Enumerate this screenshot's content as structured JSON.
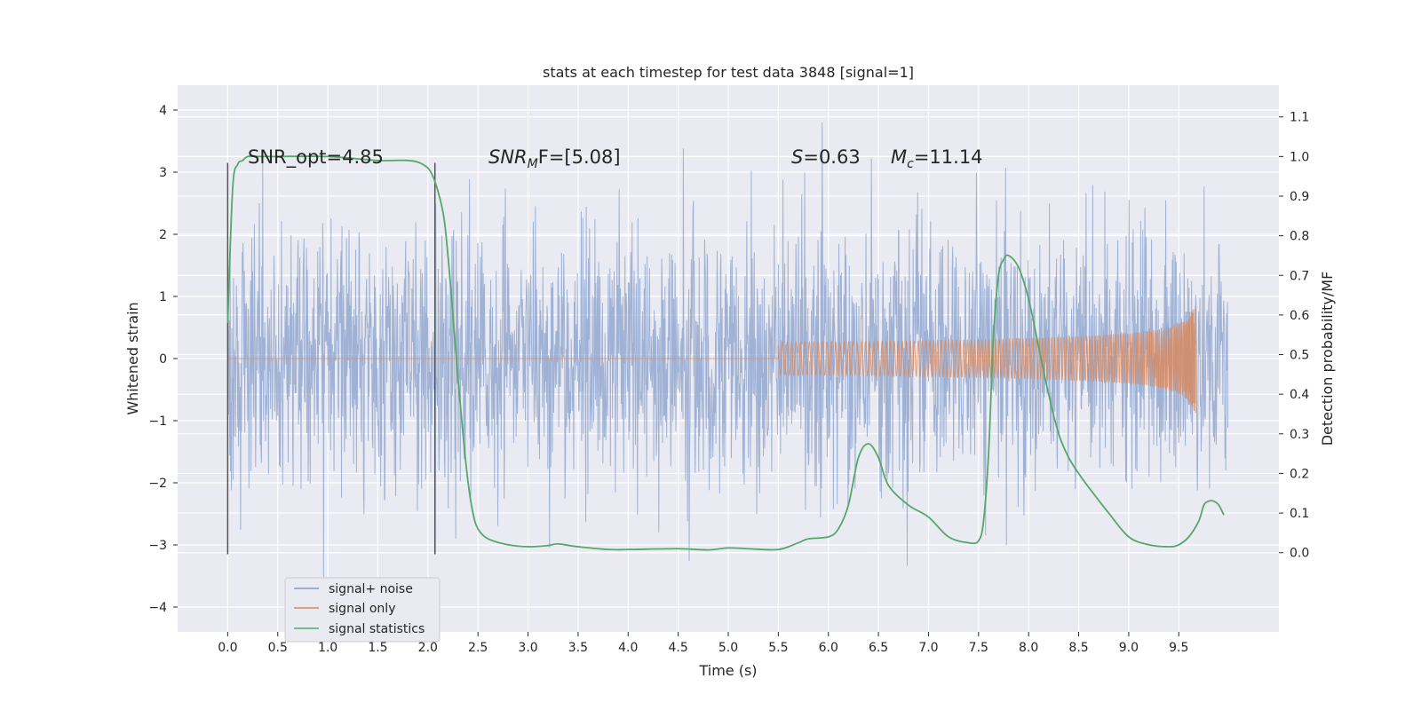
{
  "chart_data": {
    "type": "line",
    "title": "stats at each timestep for test data 3848 [signal=1]",
    "xlabel": "Time (s)",
    "ylabel": "Whitened strain",
    "y2label": "Detection probability/MF",
    "xlim": [
      -0.5,
      10.5
    ],
    "ylim": [
      -4.4,
      4.4
    ],
    "y2lim": [
      -0.2,
      1.18
    ],
    "x_ticks": [
      "0.0",
      "0.5",
      "1.0",
      "1.5",
      "2.0",
      "2.5",
      "3.0",
      "3.5",
      "4.0",
      "4.5",
      "5.0",
      "5.5",
      "6.0",
      "6.5",
      "7.0",
      "7.5",
      "8.0",
      "8.5",
      "9.0",
      "9.5"
    ],
    "y_ticks": [
      "4",
      "3",
      "2",
      "1",
      "0",
      "−1",
      "−2",
      "−3",
      "−4"
    ],
    "y_tick_values": [
      4,
      3,
      2,
      1,
      0,
      -1,
      -2,
      -3,
      -4
    ],
    "y2_ticks": [
      "1.1",
      "1.0",
      "0.9",
      "0.8",
      "0.7",
      "0.6",
      "0.5",
      "0.4",
      "0.3",
      "0.2",
      "0.1",
      "0.0"
    ],
    "y2_tick_values": [
      1.1,
      1.0,
      0.9,
      0.8,
      0.7,
      0.6,
      0.5,
      0.4,
      0.3,
      0.2,
      0.1,
      0.0
    ],
    "grid": true,
    "legend_position": "bottom-left",
    "annotations": {
      "snr_opt": "SNR_opt=4.85",
      "snr_mf_label": "SNR",
      "snr_mf_sub": "M",
      "snr_mf_suffix": "F=[5.08]",
      "s_label": "S",
      "s_value": "=0.63",
      "mc_label": "M",
      "mc_sub": "c",
      "mc_value": "=11.14"
    },
    "vertical_markers_x": [
      0.0,
      2.07
    ],
    "series": [
      {
        "name": "signal+ noise",
        "color": "#7f9ac9",
        "axis": "left",
        "x_range": [
          0.0,
          9.99
        ],
        "envelope": "noise with sigma ~1, peaks reaching about +3.8 and -4.1"
      },
      {
        "name": "signal only",
        "color": "#dd8452",
        "axis": "left",
        "chirp_start_x": 5.5,
        "chirp_end_x": 9.67,
        "chirp_peak_amplitude": 1.0
      },
      {
        "name": "signal statistics",
        "color": "#55a868",
        "axis": "right",
        "x": [
          0.0,
          0.05,
          0.1,
          0.15,
          0.2,
          0.3,
          0.5,
          1.0,
          1.5,
          1.8,
          1.95,
          2.05,
          2.15,
          2.2,
          2.25,
          2.3,
          2.35,
          2.4,
          2.45,
          2.5,
          2.6,
          2.8,
          3.0,
          3.2,
          3.3,
          3.5,
          3.8,
          4.0,
          4.5,
          4.8,
          5.0,
          5.2,
          5.5,
          5.7,
          5.8,
          6.0,
          6.1,
          6.2,
          6.3,
          6.4,
          6.5,
          6.6,
          6.8,
          7.0,
          7.2,
          7.4,
          7.5,
          7.55,
          7.6,
          7.65,
          7.7,
          7.75,
          7.8,
          7.9,
          8.0,
          8.1,
          8.2,
          8.3,
          8.4,
          8.5,
          8.6,
          8.8,
          9.0,
          9.2,
          9.4,
          9.5,
          9.6,
          9.7,
          9.75,
          9.8,
          9.85,
          9.9,
          9.95
        ],
        "values": [
          0.58,
          0.92,
          0.98,
          0.99,
          1.0,
          1.0,
          1.0,
          1.0,
          0.99,
          0.99,
          0.98,
          0.95,
          0.86,
          0.75,
          0.6,
          0.44,
          0.3,
          0.18,
          0.1,
          0.06,
          0.035,
          0.02,
          0.015,
          0.018,
          0.022,
          0.015,
          0.008,
          0.008,
          0.01,
          0.007,
          0.012,
          0.01,
          0.008,
          0.025,
          0.035,
          0.04,
          0.06,
          0.12,
          0.24,
          0.275,
          0.24,
          0.17,
          0.12,
          0.09,
          0.04,
          0.025,
          0.03,
          0.08,
          0.25,
          0.55,
          0.7,
          0.74,
          0.75,
          0.72,
          0.64,
          0.52,
          0.4,
          0.3,
          0.24,
          0.2,
          0.165,
          0.1,
          0.04,
          0.02,
          0.015,
          0.02,
          0.04,
          0.08,
          0.12,
          0.13,
          0.13,
          0.12,
          0.095
        ]
      }
    ]
  }
}
